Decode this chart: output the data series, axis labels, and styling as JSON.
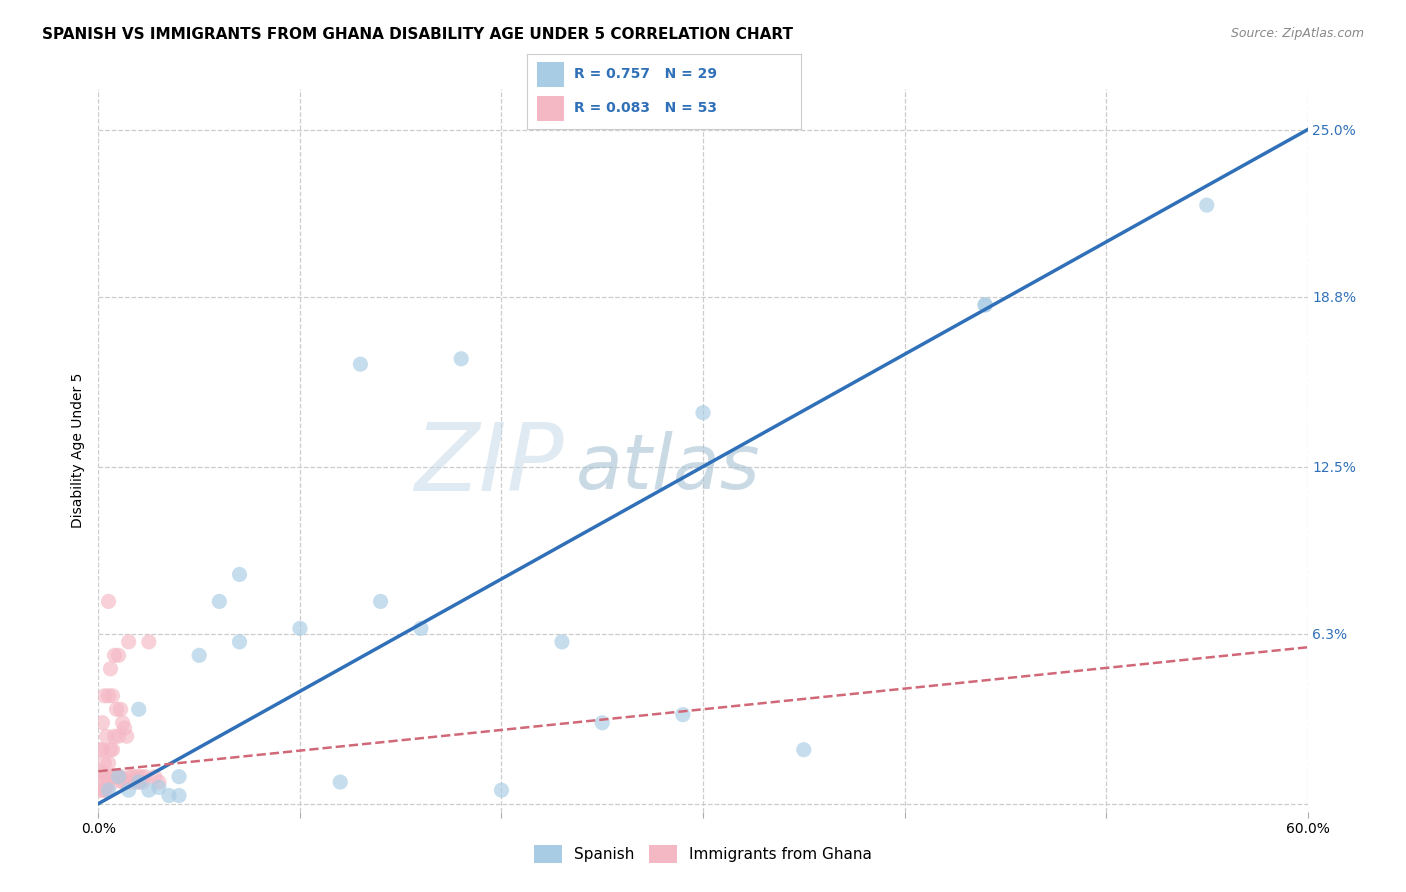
{
  "title": "SPANISH VS IMMIGRANTS FROM GHANA DISABILITY AGE UNDER 5 CORRELATION CHART",
  "source": "Source: ZipAtlas.com",
  "ylabel": "Disability Age Under 5",
  "watermark_line1": "ZIP",
  "watermark_line2": "atlas",
  "xlim": [
    0.0,
    0.6
  ],
  "ylim": [
    -0.003,
    0.265
  ],
  "xtick_positions": [
    0.0,
    0.1,
    0.2,
    0.3,
    0.4,
    0.5,
    0.6
  ],
  "xtick_labels": [
    "0.0%",
    "",
    "",
    "",
    "",
    "",
    "60.0%"
  ],
  "yticks_right": [
    0.0,
    0.063,
    0.125,
    0.188,
    0.25
  ],
  "yticks_right_labels": [
    "",
    "6.3%",
    "12.5%",
    "18.8%",
    "25.0%"
  ],
  "legend_r1": "0.757",
  "legend_n1": "29",
  "legend_r2": "0.083",
  "legend_n2": "53",
  "legend_label1": "Spanish",
  "legend_label2": "Immigrants from Ghana",
  "blue_fill": "#a8cce4",
  "pink_fill": "#f4b8c4",
  "blue_line_color": "#3070b8",
  "pink_line_color": "#d06878",
  "text_blue": "#3070b8",
  "blue_scatter_x": [
    0.005,
    0.01,
    0.015,
    0.02,
    0.025,
    0.03,
    0.035,
    0.04,
    0.05,
    0.06,
    0.07,
    0.1,
    0.12,
    0.14,
    0.16,
    0.18,
    0.2,
    0.23,
    0.25,
    0.3,
    0.35,
    0.44,
    0.44,
    0.55,
    0.02,
    0.04,
    0.07,
    0.13,
    0.29
  ],
  "blue_scatter_y": [
    0.005,
    0.01,
    0.005,
    0.008,
    0.005,
    0.006,
    0.003,
    0.003,
    0.055,
    0.075,
    0.06,
    0.065,
    0.008,
    0.075,
    0.065,
    0.165,
    0.005,
    0.06,
    0.03,
    0.145,
    0.02,
    0.185,
    0.185,
    0.222,
    0.035,
    0.01,
    0.085,
    0.163,
    0.033
  ],
  "pink_scatter_x": [
    0.001,
    0.001,
    0.001,
    0.002,
    0.002,
    0.002,
    0.002,
    0.003,
    0.003,
    0.003,
    0.003,
    0.004,
    0.004,
    0.004,
    0.005,
    0.005,
    0.005,
    0.005,
    0.006,
    0.006,
    0.006,
    0.007,
    0.007,
    0.007,
    0.008,
    0.008,
    0.008,
    0.009,
    0.009,
    0.01,
    0.01,
    0.01,
    0.011,
    0.011,
    0.012,
    0.012,
    0.013,
    0.013,
    0.014,
    0.014,
    0.015,
    0.015,
    0.016,
    0.017,
    0.018,
    0.019,
    0.02,
    0.021,
    0.022,
    0.023,
    0.025,
    0.028,
    0.03
  ],
  "pink_scatter_y": [
    0.005,
    0.012,
    0.02,
    0.005,
    0.01,
    0.02,
    0.03,
    0.005,
    0.01,
    0.015,
    0.04,
    0.005,
    0.01,
    0.025,
    0.008,
    0.015,
    0.04,
    0.075,
    0.01,
    0.02,
    0.05,
    0.008,
    0.02,
    0.04,
    0.01,
    0.025,
    0.055,
    0.01,
    0.035,
    0.01,
    0.025,
    0.055,
    0.01,
    0.035,
    0.008,
    0.03,
    0.008,
    0.028,
    0.008,
    0.025,
    0.008,
    0.06,
    0.01,
    0.01,
    0.008,
    0.01,
    0.008,
    0.01,
    0.008,
    0.01,
    0.06,
    0.01,
    0.008
  ],
  "blue_line_x": [
    0.0,
    0.6
  ],
  "blue_line_y": [
    0.0,
    0.25
  ],
  "pink_line_x": [
    0.0,
    0.6
  ],
  "pink_line_y": [
    0.012,
    0.058
  ],
  "grid_color": "#cccccc",
  "bg_color": "#ffffff",
  "title_fontsize": 11,
  "axis_label_fontsize": 10,
  "tick_fontsize": 10,
  "watermark_fontsize_zip": 68,
  "watermark_fontsize_atlas": 55
}
